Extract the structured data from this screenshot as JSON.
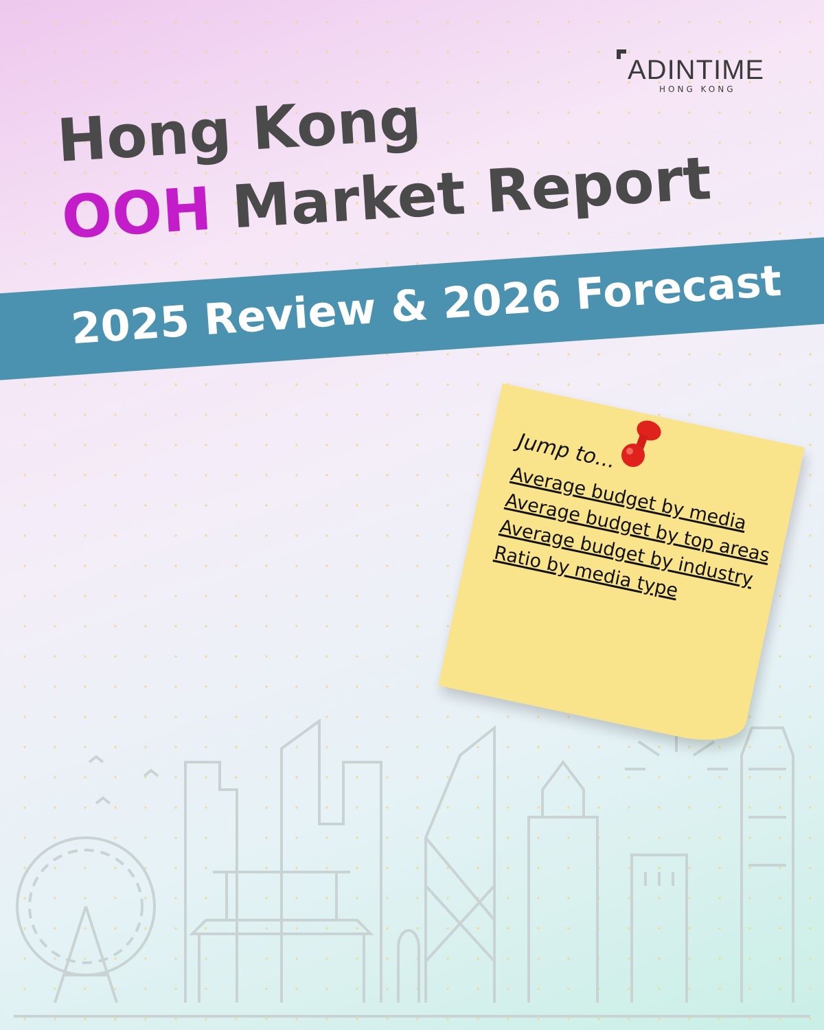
{
  "logo": {
    "name": "ADINTIME",
    "sub": "HONG KONG"
  },
  "title": {
    "line1": "Hong Kong",
    "highlight": "OOH",
    "line2_rest": "Market Report"
  },
  "banner": {
    "text": "2025 Review & 2026 Forecast"
  },
  "note": {
    "heading": "Jump to...",
    "links": [
      {
        "label": "Average budget by media"
      },
      {
        "label": "Average budget by top areas"
      },
      {
        "label": "Average budget by industry"
      },
      {
        "label": "Ratio by media type"
      }
    ]
  },
  "colors": {
    "title": "#4a4a4a",
    "highlight": "#c21dc8",
    "banner": "#4a92b0",
    "note": "#fae48b",
    "pin": "#e0221c"
  }
}
